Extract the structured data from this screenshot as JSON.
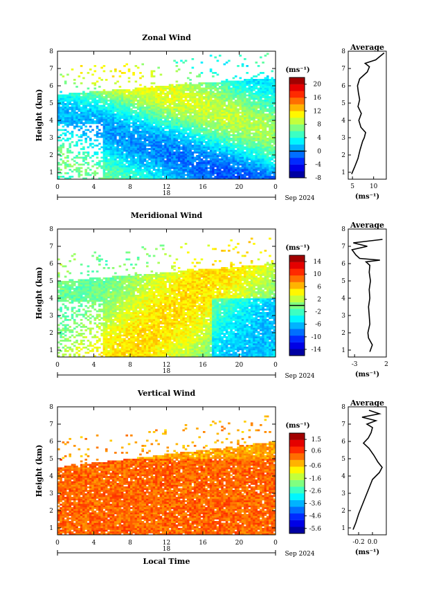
{
  "chart_data": [
    {
      "type": "heatmap",
      "title": "Zonal Wind",
      "ylabel": "Height (km)",
      "ylim": [
        0.6,
        8
      ],
      "xlim": [
        0,
        24
      ],
      "x_ticks": [
        "0",
        "4",
        "8",
        "12",
        "16",
        "20",
        "0"
      ],
      "y_ticks": [
        "1",
        "2",
        "3",
        "4",
        "5",
        "6",
        "7",
        "8"
      ],
      "date_label": "18",
      "date_suffix": "Sep 2024",
      "colorbar": {
        "unit": "(ms⁻¹)",
        "min": -8,
        "max": 22,
        "ticks": [
          "20",
          "16",
          "12",
          "8",
          "4",
          "0",
          "-4",
          "-8"
        ],
        "zero_line": 0
      },
      "field": {
        "kind": "zonal",
        "base_value": 6,
        "data_top_km": [
          5.5,
          6.5
        ]
      },
      "average_profile": {
        "title": "Average",
        "xlabel": "(ms⁻¹)",
        "xlim": [
          4,
          13
        ],
        "x_ticks": [
          "5",
          "10"
        ],
        "height_km": [
          0.9,
          1.3,
          1.8,
          2.3,
          2.8,
          3.0,
          3.3,
          3.6,
          4.0,
          4.4,
          4.8,
          5.2,
          5.6,
          6.0,
          6.4,
          6.8,
          7.1,
          7.3,
          7.5,
          7.7,
          7.9
        ],
        "values": [
          4.8,
          5.5,
          6.3,
          6.8,
          7.4,
          7.8,
          8.1,
          7.0,
          6.5,
          7.1,
          6.3,
          6.7,
          6.4,
          6.2,
          6.7,
          8.5,
          9.0,
          8.0,
          10.5,
          11.5,
          12.5
        ]
      }
    },
    {
      "type": "heatmap",
      "title": "Meridional Wind",
      "ylabel": "Height (km)",
      "ylim": [
        0.6,
        8
      ],
      "xlim": [
        0,
        24
      ],
      "x_ticks": [
        "0",
        "4",
        "8",
        "12",
        "16",
        "20",
        "0"
      ],
      "y_ticks": [
        "1",
        "2",
        "3",
        "4",
        "5",
        "6",
        "7",
        "8"
      ],
      "date_label": "18",
      "date_suffix": "Sep 2024",
      "colorbar": {
        "unit": "(ms⁻¹)",
        "min": -16,
        "max": 16,
        "ticks": [
          "14",
          "10",
          "6",
          "2",
          "-2",
          "-6",
          "-10",
          "-14"
        ],
        "zero_line": 0
      },
      "field": {
        "kind": "meridional",
        "base_value": 1,
        "data_top_km": [
          5.0,
          6.0
        ]
      },
      "average_profile": {
        "title": "Average",
        "xlabel": "(ms⁻¹)",
        "xlim": [
          -4,
          2
        ],
        "x_ticks": [
          "-3",
          "2"
        ],
        "height_km": [
          0.9,
          1.3,
          1.7,
          2.0,
          2.5,
          3.0,
          3.5,
          4.0,
          4.5,
          5.0,
          5.5,
          5.9,
          6.1,
          6.2,
          6.3,
          6.5,
          6.8,
          7.0,
          7.2,
          7.4
        ],
        "values": [
          -0.6,
          -0.2,
          -0.8,
          -0.9,
          -0.6,
          -0.7,
          -0.8,
          -0.6,
          -0.7,
          -0.5,
          -0.7,
          -0.6,
          -1.2,
          1.0,
          -2.2,
          -2.8,
          -3.4,
          -1.0,
          -3.2,
          1.4
        ]
      }
    },
    {
      "type": "heatmap",
      "title": "Vertical Wind",
      "ylabel": "Height (km)",
      "xlabel": "Local Time",
      "ylim": [
        0.6,
        8
      ],
      "xlim": [
        0,
        24
      ],
      "x_ticks": [
        "0",
        "4",
        "8",
        "12",
        "16",
        "20",
        "0"
      ],
      "y_ticks": [
        "1",
        "2",
        "3",
        "4",
        "5",
        "6",
        "7",
        "8"
      ],
      "date_label": "18",
      "date_suffix": "Sep 2024",
      "colorbar": {
        "unit": "(ms⁻¹)",
        "min": -6,
        "max": 2,
        "ticks": [
          "1.5",
          "0.6",
          "-0.6",
          "-1.6",
          "-2.6",
          "-3.6",
          "-4.6",
          "-5.6"
        ]
      },
      "field": {
        "kind": "vertical",
        "base_value": 0.3,
        "data_top_km": [
          4.5,
          6.0
        ]
      },
      "average_profile": {
        "title": "Average",
        "xlabel": "(ms⁻¹)",
        "xlim": [
          -0.35,
          0.2
        ],
        "x_ticks": [
          "-0.2",
          "0.0"
        ],
        "height_km": [
          0.9,
          1.3,
          1.8,
          2.3,
          2.8,
          3.3,
          3.8,
          4.2,
          4.5,
          4.8,
          5.2,
          5.6,
          5.9,
          6.2,
          6.5,
          6.8,
          7.0,
          7.2,
          7.4,
          7.6,
          7.8
        ],
        "values": [
          -0.28,
          -0.24,
          -0.2,
          -0.15,
          -0.1,
          -0.05,
          0.0,
          0.1,
          0.14,
          0.08,
          0.02,
          -0.05,
          -0.13,
          -0.06,
          -0.02,
          0.0,
          -0.08,
          0.05,
          -0.15,
          0.1,
          -0.05
        ]
      }
    }
  ]
}
